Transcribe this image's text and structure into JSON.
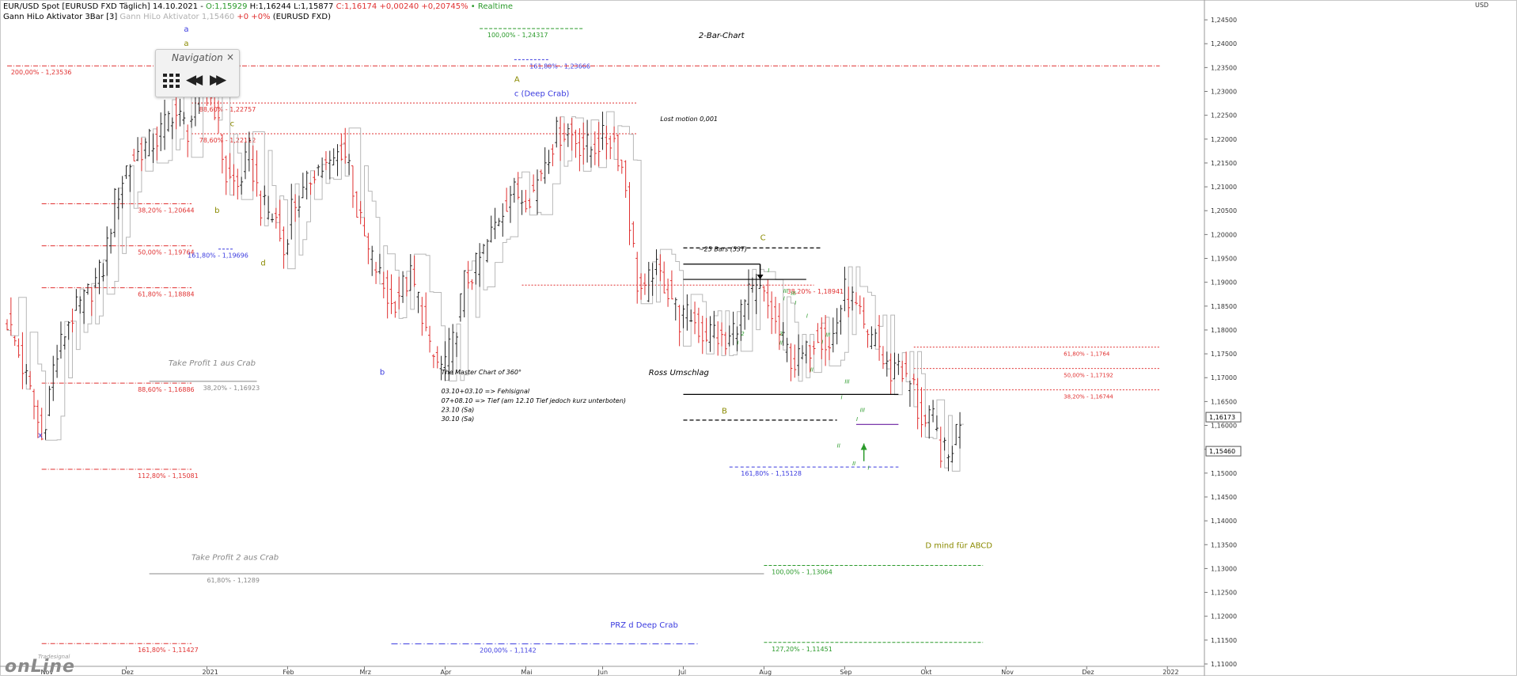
{
  "header": {
    "instrument": "EUR/USD Spot [EURUSD FXD Täglich] 14.10.2021 - ",
    "open": "O:1,15929",
    "high": "H:1,16244",
    "low": "L:1,15877",
    "close": "C:1,16174 +0,00240 +0,20745%",
    "realtime": "• Realtime",
    "indicator_name": "Gann HiLo Aktivator 3Bar [3]",
    "indicator_value": "Gann HiLo Aktivator 1,15460",
    "indicator_change": "+0 +0%",
    "indicator_symbol": "(EURUSD FXD)"
  },
  "navigation": {
    "title": "Navigation",
    "close": "×",
    "back": "◀◀",
    "forward": "▶▶"
  },
  "logo": {
    "small": "Tradesignal",
    "big": "onLine"
  },
  "colors": {
    "up_bar": "#222222",
    "down_bar": "#e03030",
    "gann": "#b8b8b8",
    "red": "#e03030",
    "blue": "#3a3adf",
    "green": "#2a9a2a",
    "olive": "#8a8a00"
  },
  "chart_data": {
    "type": "ohlc",
    "currency_label": "USD",
    "ylim": [
      1.11,
      1.25
    ],
    "y_ticks": [
      "1,11000",
      "1,11500",
      "1,12000",
      "1,12500",
      "1,13000",
      "1,13500",
      "1,14000",
      "1,14500",
      "1,15000",
      "1,15500",
      "1,16000",
      "1,16500",
      "1,17000",
      "1,17500",
      "1,18000",
      "1,18500",
      "1,19000",
      "1,19500",
      "1,20000",
      "1,20500",
      "1,21000",
      "1,21500",
      "1,22000",
      "1,22500",
      "1,23000",
      "1,23500",
      "1,24000",
      "1,24500"
    ],
    "price_labels": [
      {
        "text": "1,16173",
        "y": 1.16173
      },
      {
        "text": "1,15460",
        "y": 1.1546
      }
    ],
    "x_labels": [
      {
        "text": "Nov",
        "i": 10
      },
      {
        "text": "Dez",
        "i": 31
      },
      {
        "text": "2021",
        "i": 52
      },
      {
        "text": "Feb",
        "i": 73
      },
      {
        "text": "Mrz",
        "i": 93
      },
      {
        "text": "Apr",
        "i": 114
      },
      {
        "text": "Mai",
        "i": 135
      },
      {
        "text": "Jun",
        "i": 155
      },
      {
        "text": "Jul",
        "i": 176
      },
      {
        "text": "Aug",
        "i": 197
      },
      {
        "text": "Sep",
        "i": 218
      },
      {
        "text": "Okt",
        "i": 239
      },
      {
        "text": "Nov",
        "i": 260
      },
      {
        "text": "Dez",
        "i": 281
      },
      {
        "text": "2022",
        "i": 302
      }
    ],
    "bars_start": "2020-10-27",
    "bars_end": "2021-10-14",
    "bar_count": 249,
    "close_anchors": [
      [
        0,
        1.182
      ],
      [
        3,
        1.175
      ],
      [
        7,
        1.164
      ],
      [
        9,
        1.157
      ],
      [
        12,
        1.172
      ],
      [
        16,
        1.182
      ],
      [
        20,
        1.186
      ],
      [
        25,
        1.193
      ],
      [
        28,
        1.207
      ],
      [
        31,
        1.214
      ],
      [
        35,
        1.218
      ],
      [
        39,
        1.22
      ],
      [
        43,
        1.226
      ],
      [
        47,
        1.222
      ],
      [
        51,
        1.232
      ],
      [
        54,
        1.227
      ],
      [
        57,
        1.212
      ],
      [
        60,
        1.21
      ],
      [
        63,
        1.217
      ],
      [
        66,
        1.206
      ],
      [
        70,
        1.203
      ],
      [
        72,
        1.196
      ],
      [
        74,
        1.206
      ],
      [
        77,
        1.208
      ],
      [
        80,
        1.214
      ],
      [
        84,
        1.214
      ],
      [
        87,
        1.218
      ],
      [
        89,
        1.215
      ],
      [
        91,
        1.205
      ],
      [
        94,
        1.196
      ],
      [
        96,
        1.193
      ],
      [
        98,
        1.189
      ],
      [
        100,
        1.185
      ],
      [
        102,
        1.188
      ],
      [
        105,
        1.191
      ],
      [
        108,
        1.184
      ],
      [
        110,
        1.175
      ],
      [
        113,
        1.172
      ],
      [
        116,
        1.177
      ],
      [
        119,
        1.19
      ],
      [
        122,
        1.193
      ],
      [
        125,
        1.198
      ],
      [
        128,
        1.204
      ],
      [
        131,
        1.209
      ],
      [
        134,
        1.208
      ],
      [
        137,
        1.209
      ],
      [
        140,
        1.216
      ],
      [
        143,
        1.221
      ],
      [
        146,
        1.222
      ],
      [
        149,
        1.219
      ],
      [
        152,
        1.218
      ],
      [
        155,
        1.22
      ],
      [
        158,
        1.22
      ],
      [
        160,
        1.214
      ],
      [
        161,
        1.21
      ],
      [
        162,
        1.203
      ],
      [
        164,
        1.19
      ],
      [
        166,
        1.187
      ],
      [
        168,
        1.193
      ],
      [
        171,
        1.19
      ],
      [
        173,
        1.187
      ],
      [
        175,
        1.182
      ],
      [
        178,
        1.183
      ],
      [
        181,
        1.179
      ],
      [
        184,
        1.18
      ],
      [
        187,
        1.176
      ],
      [
        190,
        1.182
      ],
      [
        193,
        1.187
      ],
      [
        196,
        1.188
      ],
      [
        199,
        1.183
      ],
      [
        202,
        1.177
      ],
      [
        205,
        1.173
      ],
      [
        208,
        1.175
      ],
      [
        211,
        1.18
      ],
      [
        214,
        1.176
      ],
      [
        216,
        1.182
      ],
      [
        218,
        1.188
      ],
      [
        220,
        1.186
      ],
      [
        222,
        1.182
      ],
      [
        224,
        1.177
      ],
      [
        226,
        1.18
      ],
      [
        228,
        1.173
      ],
      [
        230,
        1.171
      ],
      [
        232,
        1.174
      ],
      [
        234,
        1.169
      ],
      [
        236,
        1.168
      ],
      [
        237,
        1.163
      ],
      [
        239,
        1.16
      ],
      [
        241,
        1.161
      ],
      [
        243,
        1.155
      ],
      [
        245,
        1.153
      ],
      [
        246,
        1.156
      ],
      [
        248,
        1.1617
      ]
    ],
    "hlines": [
      {
        "y": 1.24317,
        "i1": 123,
        "i2": 150,
        "color": "green",
        "label": "100,00% - 1,24317",
        "li": 125,
        "dash": "4,2"
      },
      {
        "y": 1.23666,
        "i1": 132,
        "i2": 141,
        "color": "blue",
        "label": "161,80% - 1,23666",
        "li": 136,
        "dash": "3,2"
      },
      {
        "y": 1.23536,
        "i1": 0,
        "i2": 300,
        "color": "red",
        "label": "200,00% - 1,23536",
        "li": 1,
        "dash": "6,2,1,2"
      },
      {
        "y": 1.22757,
        "i1": 48,
        "i2": 164,
        "color": "red",
        "label": "88,60% - 1,22757",
        "li": 50,
        "dash": "2,2"
      },
      {
        "y": 1.22112,
        "i1": 48,
        "i2": 164,
        "color": "red",
        "label": "78,60% - 1,22112",
        "li": 50,
        "dash": "2,2"
      },
      {
        "y": 1.20644,
        "i1": 9,
        "i2": 48,
        "color": "red",
        "label": "38,20% - 1,20644",
        "li": 34,
        "dash": "6,2,1,2"
      },
      {
        "y": 1.19764,
        "i1": 9,
        "i2": 48,
        "color": "red",
        "label": "50,00% - 1,19764",
        "li": 34,
        "dash": "6,2,1,2"
      },
      {
        "y": 1.19696,
        "i1": 55,
        "i2": 59,
        "color": "blue",
        "label": "161,80% - 1,19696",
        "li": 47,
        "dash": "3,2"
      },
      {
        "y": 1.18884,
        "i1": 9,
        "i2": 48,
        "color": "red",
        "label": "61,80% - 1,18884",
        "li": 34,
        "dash": "6,2,1,2"
      },
      {
        "y": 1.18941,
        "i1": 134,
        "i2": 210,
        "color": "red",
        "label": "38,20% - 1,18941",
        "li": 203,
        "dash": "2,2"
      },
      {
        "y": 1.16886,
        "i1": 9,
        "i2": 48,
        "color": "red",
        "label": "88,60% - 1,16886",
        "li": 34,
        "dash": "6,2,1,2"
      },
      {
        "y": 1.16923,
        "i1": 37,
        "i2": 65,
        "color": "gray",
        "label": "38,20% - 1,16923",
        "li": 51,
        "dash": ""
      },
      {
        "y": 1.15081,
        "i1": 9,
        "i2": 48,
        "color": "red",
        "label": "112,80% - 1,15081",
        "li": 34,
        "dash": "6,2,1,2"
      },
      {
        "y": 1.15128,
        "i1": 188,
        "i2": 232,
        "color": "blue",
        "label": "161,80% - 1,15128",
        "li": 191,
        "dash": "4,3"
      },
      {
        "y": 1.1764,
        "i1": 236,
        "i2": 300,
        "color": "red",
        "label": "61,80% - 1,1764",
        "li": 275,
        "dash": "2,2",
        "small": true
      },
      {
        "y": 1.17192,
        "i1": 236,
        "i2": 300,
        "color": "red",
        "label": "50,00% - 1,17192",
        "li": 275,
        "dash": "2,2",
        "small": true
      },
      {
        "y": 1.16744,
        "i1": 236,
        "i2": 300,
        "color": "red",
        "label": "38,20% - 1,16744",
        "li": 275,
        "dash": "2,2",
        "small": true
      },
      {
        "y": 1.13064,
        "i1": 197,
        "i2": 254,
        "color": "green",
        "label": "100,00% - 1,13064",
        "li": 199,
        "dash": "4,2"
      },
      {
        "y": 1.1289,
        "i1": 37,
        "i2": 197,
        "color": "gray",
        "label": "61,80% - 1,1289",
        "li": 52,
        "dash": ""
      },
      {
        "y": 1.11427,
        "i1": 9,
        "i2": 48,
        "color": "red",
        "label": "161,80% - 1,11427",
        "li": 34,
        "dash": "6,2,1,2"
      },
      {
        "y": 1.1142,
        "i1": 100,
        "i2": 180,
        "color": "blue",
        "label": "200,00% - 1,1142",
        "li": 123,
        "dash": "8,3,1,3"
      },
      {
        "y": 1.11451,
        "i1": 197,
        "i2": 254,
        "color": "green",
        "label": "127,20% - 1,11451",
        "li": 199,
        "dash": "4,2"
      }
    ],
    "black_lines": [
      {
        "y": 1.1972,
        "i1": 176,
        "i2": 212,
        "dash": "5,3"
      },
      {
        "y": 1.1938,
        "i1": 176,
        "i2": 196,
        "dash": ""
      },
      {
        "y": 1.1906,
        "i1": 176,
        "i2": 208,
        "dash": ""
      },
      {
        "y": 1.1665,
        "i1": 176,
        "i2": 232,
        "dash": ""
      },
      {
        "y": 1.1611,
        "i1": 176,
        "i2": 216,
        "dash": "5,3"
      },
      {
        "y": 1.1602,
        "i1": 221,
        "i2": 232,
        "dash": "",
        "color": "purple"
      }
    ],
    "annotations": [
      {
        "text": "2-Bar-Chart",
        "i": 180,
        "y": 1.2412,
        "color": "black",
        "size": 10,
        "italic": true
      },
      {
        "text": "Lost motion 0,001",
        "i": 170,
        "y": 1.2238,
        "color": "black",
        "size": 8,
        "italic": true
      },
      {
        "text": "c (Deep Crab)",
        "i": 132,
        "y": 1.229,
        "color": "blue",
        "size": 10
      },
      {
        "text": "A",
        "i": 132,
        "y": 1.232,
        "color": "olive",
        "size": 10
      },
      {
        "text": "a",
        "i": 46,
        "y": 1.2425,
        "color": "blue",
        "size": 10
      },
      {
        "text": "a",
        "i": 46,
        "y": 1.2395,
        "color": "olive",
        "size": 10
      },
      {
        "text": "c",
        "i": 58,
        "y": 1.2227,
        "color": "olive",
        "size": 10
      },
      {
        "text": "b",
        "i": 54,
        "y": 1.2045,
        "color": "olive",
        "size": 10
      },
      {
        "text": "d",
        "i": 66,
        "y": 1.1935,
        "color": "olive",
        "size": 10
      },
      {
        "text": "b",
        "i": 97,
        "y": 1.1706,
        "color": "blue",
        "size": 10
      },
      {
        "text": "x",
        "i": 8,
        "y": 1.1574,
        "color": "blue",
        "size": 10
      },
      {
        "text": "C",
        "i": 196,
        "y": 1.1988,
        "color": "olive",
        "size": 10
      },
      {
        "text": "B",
        "i": 186,
        "y": 1.1625,
        "color": "olive",
        "size": 10
      },
      {
        "text": "~25 Bars (53T)",
        "i": 180,
        "y": 1.1965,
        "color": "black",
        "size": 8,
        "italic": true
      },
      {
        "text": "Ross Umschlag",
        "i": 167,
        "y": 1.1705,
        "color": "black",
        "size": 10,
        "italic": true
      },
      {
        "text": "Take Profit 1 aus Crab",
        "i": 42,
        "y": 1.1725,
        "color": "gray",
        "size": 10,
        "italic": true
      },
      {
        "text": "Take Profit 2 aus Crab",
        "i": 48,
        "y": 1.1318,
        "color": "gray",
        "size": 10,
        "italic": true
      },
      {
        "text": "D mind für ABCD",
        "i": 239,
        "y": 1.1343,
        "color": "olive",
        "size": 10
      },
      {
        "text": "PRZ d Deep Crab",
        "i": 157,
        "y": 1.1176,
        "color": "blue",
        "size": 10
      },
      {
        "text": "The Master Chart of 360°",
        "i": 113,
        "y": 1.1707,
        "color": "black",
        "size": 8,
        "italic": true
      },
      {
        "text": "03.10+03.10 => Fehlsignal",
        "i": 113,
        "y": 1.1667,
        "color": "black",
        "size": 8,
        "italic": true
      },
      {
        "text": "07+08.10 => Tief (am 12.10 Tief jedoch kurz unterboten)",
        "i": 113,
        "y": 1.1647,
        "color": "black",
        "size": 8,
        "italic": true
      },
      {
        "text": "23.10 (Sa)",
        "i": 113,
        "y": 1.1628,
        "color": "black",
        "size": 8,
        "italic": true
      },
      {
        "text": "30.10 (Sa)",
        "i": 113,
        "y": 1.1609,
        "color": "black",
        "size": 8,
        "italic": true
      }
    ],
    "wave_labels": [
      {
        "text": "I",
        "i": 198,
        "y": 1.1921
      },
      {
        "text": "III",
        "i": 202,
        "y": 1.1878
      },
      {
        "text": "I",
        "i": 202,
        "y": 1.1862
      },
      {
        "text": "III",
        "i": 204,
        "y": 1.1873
      },
      {
        "text": "I",
        "i": 205,
        "y": 1.1853
      },
      {
        "text": "I",
        "i": 208,
        "y": 1.1826
      },
      {
        "text": "3",
        "i": 201,
        "y": 1.1788
      },
      {
        "text": "II",
        "i": 201,
        "y": 1.1769
      },
      {
        "text": "III",
        "i": 213,
        "y": 1.1786
      },
      {
        "text": "I",
        "i": 212,
        "y": 1.1771
      },
      {
        "text": "II",
        "i": 209,
        "y": 1.1713
      },
      {
        "text": "2",
        "i": 191,
        "y": 1.1788
      },
      {
        "text": "I",
        "i": 190,
        "y": 1.1769
      },
      {
        "text": "III",
        "i": 218,
        "y": 1.1688
      },
      {
        "text": "I",
        "i": 217,
        "y": 1.1655
      },
      {
        "text": "III",
        "i": 222,
        "y": 1.1628
      },
      {
        "text": "I",
        "i": 221,
        "y": 1.1609
      },
      {
        "text": "II",
        "i": 216,
        "y": 1.1554
      },
      {
        "text": "II",
        "i": 220,
        "y": 1.1516
      },
      {
        "text": "I",
        "i": 224,
        "y": 1.1507
      }
    ],
    "arrows": [
      {
        "kind": "down",
        "i": 196,
        "y1": 1.1938,
        "y2": 1.1906,
        "color": "black"
      },
      {
        "kind": "up",
        "i": 223,
        "y1": 1.1525,
        "y2": 1.1562,
        "color": "green"
      }
    ]
  }
}
